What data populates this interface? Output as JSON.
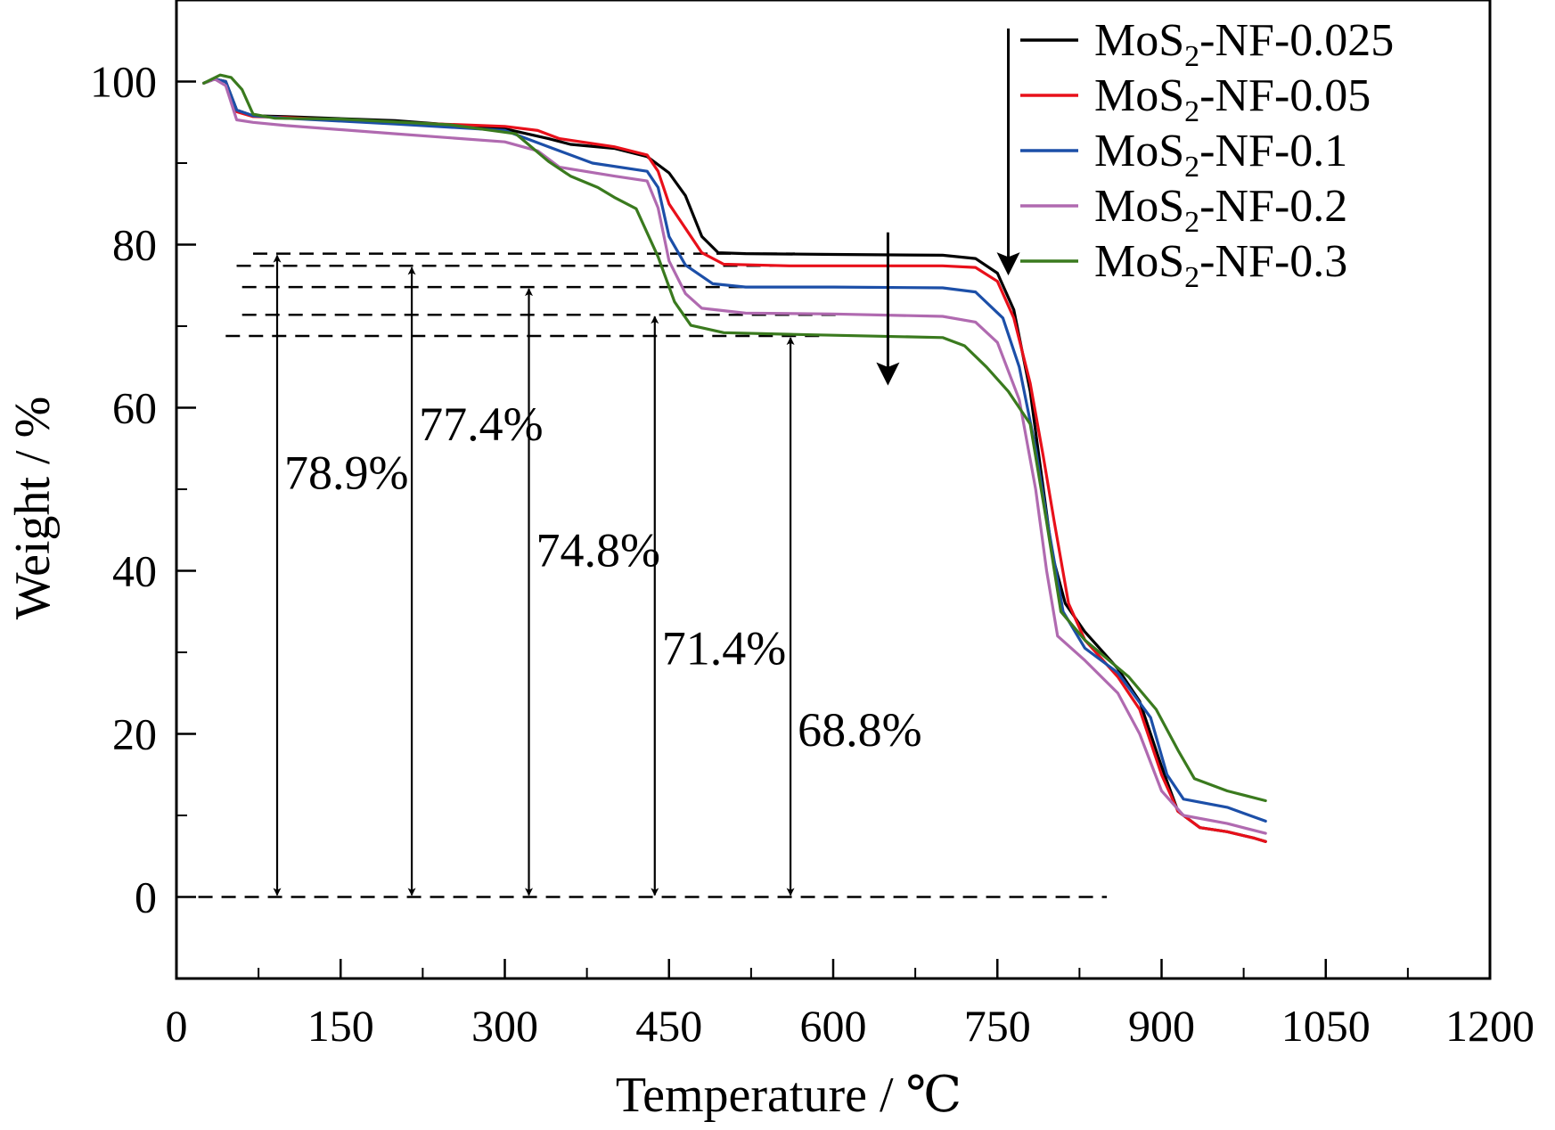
{
  "chart_data": {
    "type": "line",
    "xlabel": "Temperature / ℃",
    "ylabel": "Weight / %",
    "xlim": [
      0,
      1200
    ],
    "ylim": [
      -10,
      110
    ],
    "xticks": [
      0,
      150,
      300,
      450,
      600,
      750,
      900,
      1050,
      1200
    ],
    "yticks": [
      0,
      20,
      40,
      60,
      80,
      100
    ],
    "grid": false,
    "legend": {
      "position": "top-right",
      "entries": [
        {
          "prefix": "MoS",
          "sub": "2",
          "suffix": "-NF-0.025"
        },
        {
          "prefix": "MoS",
          "sub": "2",
          "suffix": "-NF-0.05"
        },
        {
          "prefix": "MoS",
          "sub": "2",
          "suffix": "-NF-0.1"
        },
        {
          "prefix": "MoS",
          "sub": "2",
          "suffix": "-NF-0.2"
        },
        {
          "prefix": "MoS",
          "sub": "2",
          "suffix": "-NF-0.3"
        }
      ]
    },
    "series": [
      {
        "name": "MoS2-NF-0.025",
        "color": "#000000",
        "points": [
          [
            25,
            99.8
          ],
          [
            35,
            100.3
          ],
          [
            45,
            100
          ],
          [
            55,
            96.5
          ],
          [
            70,
            95.8
          ],
          [
            100,
            95.7
          ],
          [
            200,
            95.2
          ],
          [
            300,
            94.2
          ],
          [
            340,
            93
          ],
          [
            360,
            92.3
          ],
          [
            400,
            91.8
          ],
          [
            430,
            90.8
          ],
          [
            450,
            88.8
          ],
          [
            465,
            86
          ],
          [
            480,
            81
          ],
          [
            495,
            79
          ],
          [
            520,
            78.9
          ],
          [
            600,
            78.8
          ],
          [
            700,
            78.7
          ],
          [
            730,
            78.3
          ],
          [
            750,
            76.5
          ],
          [
            765,
            72
          ],
          [
            780,
            62
          ],
          [
            790,
            52
          ],
          [
            800,
            42
          ],
          [
            812,
            36
          ],
          [
            830,
            32.5
          ],
          [
            860,
            28
          ],
          [
            880,
            24
          ],
          [
            900,
            16
          ],
          [
            915,
            10.5
          ],
          [
            935,
            8.5
          ],
          [
            960,
            8
          ],
          [
            985,
            7.2
          ],
          [
            995,
            6.8
          ]
        ]
      },
      {
        "name": "MoS2-NF-0.05",
        "color": "#e8101a",
        "points": [
          [
            25,
            99.8
          ],
          [
            35,
            100.3
          ],
          [
            45,
            100
          ],
          [
            55,
            96.3
          ],
          [
            70,
            95.7
          ],
          [
            100,
            95.6
          ],
          [
            200,
            95
          ],
          [
            300,
            94.5
          ],
          [
            330,
            94
          ],
          [
            350,
            93
          ],
          [
            400,
            92
          ],
          [
            430,
            91
          ],
          [
            440,
            89
          ],
          [
            450,
            85
          ],
          [
            465,
            82
          ],
          [
            480,
            79
          ],
          [
            500,
            77.6
          ],
          [
            560,
            77.4
          ],
          [
            700,
            77.4
          ],
          [
            730,
            77.2
          ],
          [
            750,
            75.5
          ],
          [
            765,
            71
          ],
          [
            780,
            63
          ],
          [
            792,
            54
          ],
          [
            802,
            46
          ],
          [
            815,
            36
          ],
          [
            830,
            31.5
          ],
          [
            860,
            27
          ],
          [
            880,
            23
          ],
          [
            900,
            15
          ],
          [
            915,
            10.5
          ],
          [
            935,
            8.5
          ],
          [
            960,
            8
          ],
          [
            985,
            7.2
          ],
          [
            995,
            6.8
          ]
        ]
      },
      {
        "name": "MoS2-NF-0.1",
        "color": "#1c4fa8",
        "points": [
          [
            25,
            99.8
          ],
          [
            35,
            100.3
          ],
          [
            45,
            100
          ],
          [
            55,
            96.5
          ],
          [
            70,
            95.8
          ],
          [
            100,
            95.5
          ],
          [
            200,
            94.8
          ],
          [
            300,
            94
          ],
          [
            340,
            92
          ],
          [
            380,
            90
          ],
          [
            430,
            89
          ],
          [
            440,
            87
          ],
          [
            450,
            81
          ],
          [
            465,
            77.5
          ],
          [
            490,
            75.2
          ],
          [
            520,
            74.8
          ],
          [
            600,
            74.8
          ],
          [
            700,
            74.7
          ],
          [
            730,
            74.2
          ],
          [
            755,
            71
          ],
          [
            770,
            65
          ],
          [
            785,
            55
          ],
          [
            797,
            45
          ],
          [
            810,
            35
          ],
          [
            830,
            30.5
          ],
          [
            860,
            27.5
          ],
          [
            890,
            22
          ],
          [
            905,
            15
          ],
          [
            920,
            12
          ],
          [
            960,
            11
          ],
          [
            995,
            9.3
          ]
        ]
      },
      {
        "name": "MoS2-NF-0.2",
        "color": "#b06ab0",
        "points": [
          [
            25,
            99.8
          ],
          [
            35,
            100.3
          ],
          [
            45,
            99.5
          ],
          [
            55,
            95.3
          ],
          [
            70,
            95
          ],
          [
            100,
            94.6
          ],
          [
            200,
            93.6
          ],
          [
            300,
            92.6
          ],
          [
            330,
            91.5
          ],
          [
            350,
            89.5
          ],
          [
            400,
            88.4
          ],
          [
            430,
            87.8
          ],
          [
            440,
            84.5
          ],
          [
            450,
            78
          ],
          [
            465,
            74
          ],
          [
            480,
            72.2
          ],
          [
            520,
            71.6
          ],
          [
            600,
            71.5
          ],
          [
            700,
            71.2
          ],
          [
            730,
            70.5
          ],
          [
            750,
            68
          ],
          [
            770,
            61
          ],
          [
            785,
            50
          ],
          [
            795,
            40
          ],
          [
            805,
            32
          ],
          [
            830,
            29
          ],
          [
            860,
            25
          ],
          [
            880,
            20
          ],
          [
            900,
            13
          ],
          [
            920,
            10
          ],
          [
            960,
            9
          ],
          [
            995,
            7.8
          ]
        ]
      },
      {
        "name": "MoS2-NF-0.3",
        "color": "#3a7a1e",
        "points": [
          [
            25,
            99.8
          ],
          [
            40,
            100.8
          ],
          [
            50,
            100.5
          ],
          [
            60,
            99
          ],
          [
            70,
            96
          ],
          [
            90,
            95.5
          ],
          [
            150,
            95.4
          ],
          [
            250,
            94.7
          ],
          [
            310,
            93.6
          ],
          [
            340,
            90.2
          ],
          [
            360,
            88.4
          ],
          [
            385,
            87
          ],
          [
            400,
            85.8
          ],
          [
            420,
            84.4
          ],
          [
            440,
            78.5
          ],
          [
            455,
            73
          ],
          [
            470,
            70.1
          ],
          [
            500,
            69.2
          ],
          [
            560,
            69
          ],
          [
            700,
            68.6
          ],
          [
            720,
            67.6
          ],
          [
            740,
            65
          ],
          [
            760,
            62
          ],
          [
            780,
            58
          ],
          [
            795,
            46
          ],
          [
            808,
            35
          ],
          [
            830,
            31.5
          ],
          [
            870,
            27
          ],
          [
            895,
            23
          ],
          [
            915,
            18
          ],
          [
            930,
            14.5
          ],
          [
            960,
            13
          ],
          [
            995,
            11.8
          ]
        ]
      }
    ],
    "reference_lines": [
      {
        "y": 78.9,
        "x_start": 70,
        "x_end": 565
      },
      {
        "y": 77.4,
        "x_start": 55,
        "x_end": 575
      },
      {
        "y": 74.8,
        "x_start": 60,
        "x_end": 525
      },
      {
        "y": 71.4,
        "x_start": 60,
        "x_end": 610
      },
      {
        "y": 68.8,
        "x_start": 45,
        "x_end": 595
      },
      {
        "y": 0,
        "x_start": 20,
        "x_end": 850
      }
    ],
    "annotations": [
      {
        "text": "78.9%",
        "x": 92,
        "y_top": 78.9,
        "text_y": 52
      },
      {
        "text": "77.4%",
        "x": 215,
        "y_top": 77.4,
        "text_y": 58
      },
      {
        "text": "74.8%",
        "x": 322,
        "y_top": 74.8,
        "text_y": 42.5
      },
      {
        "text": "71.4%",
        "x": 437,
        "y_top": 71.4,
        "text_y": 30.5
      },
      {
        "text": "68.8%",
        "x": 561,
        "y_top": 68.8,
        "text_y": 20.5
      }
    ],
    "arrows": [
      {
        "x": 650,
        "y_from": 81.5,
        "y_to": 63
      },
      {
        "x": 760,
        "y_from": 106.5,
        "y_to": 76.5
      }
    ]
  }
}
